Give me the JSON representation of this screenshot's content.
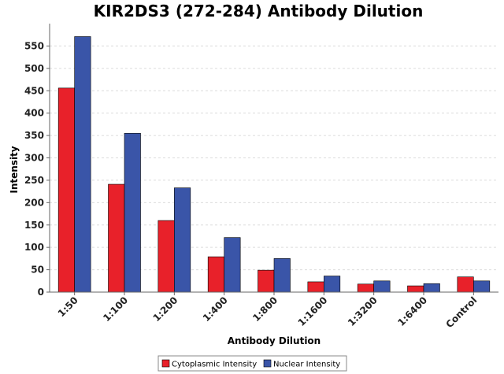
{
  "colors": {
    "cytoplasmic": "#e8212a",
    "nuclear": "#3a55a8",
    "gridline": "#dcdcdc",
    "axis": "#666666"
  },
  "chart_data": {
    "type": "bar",
    "title": "KIR2DS3 (272-284) Antibody Dilution",
    "xlabel": "Antibody Dilution",
    "ylabel": "Intensity",
    "categories": [
      "1:50",
      "1:100",
      "1:200",
      "1:400",
      "1:800",
      "1:1600",
      "1:3200",
      "1:6400",
      "Control"
    ],
    "series": [
      {
        "name": "Cytoplasmic Intensity",
        "values": [
          456,
          241,
          160,
          79,
          49,
          23,
          18,
          14,
          34
        ]
      },
      {
        "name": "Nuclear Intensity",
        "values": [
          571,
          355,
          233,
          122,
          75,
          36,
          25,
          19,
          25
        ]
      }
    ],
    "ylim": [
      0,
      600
    ],
    "yticks": [
      0,
      50,
      100,
      150,
      200,
      250,
      300,
      350,
      400,
      450,
      500,
      550
    ],
    "grid": true,
    "legend_position": "bottom-center"
  }
}
